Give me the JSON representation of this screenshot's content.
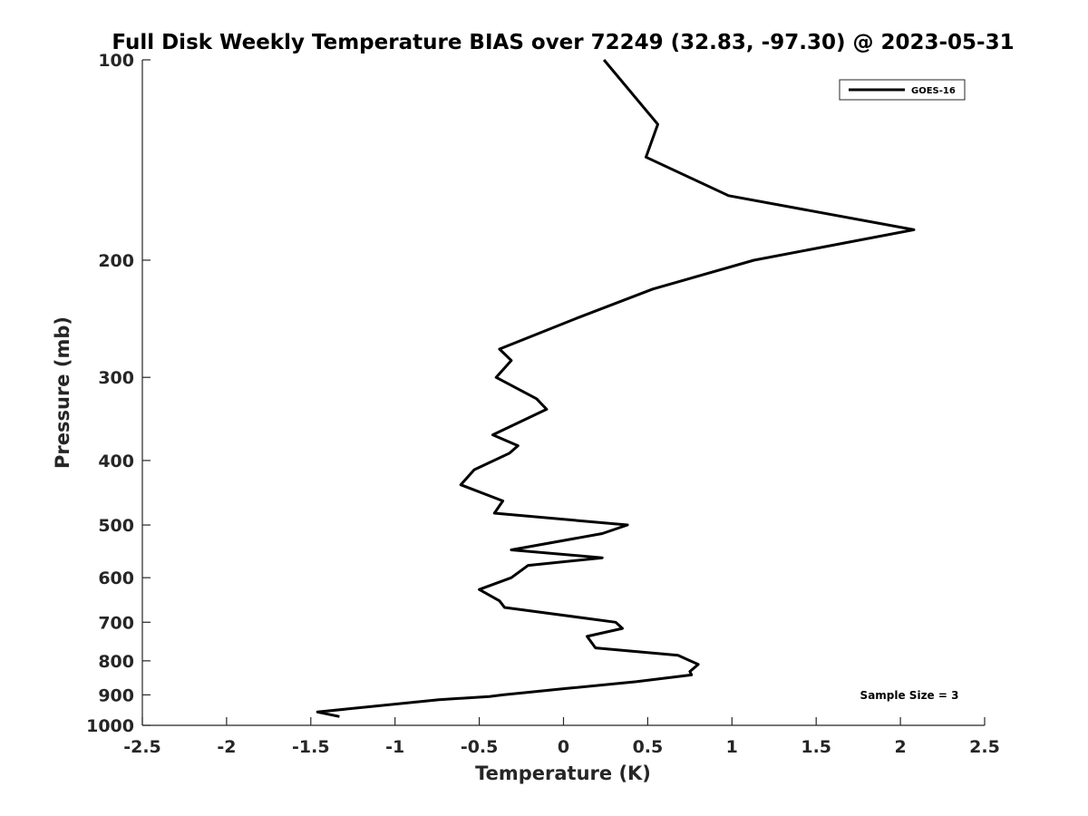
{
  "chart_data": {
    "type": "line",
    "title": "Full Disk Weekly Temperature BIAS over 72249 (32.83, -97.30) @ 2023-05-31",
    "xlabel": "Temperature (K)",
    "ylabel": "Pressure (mb)",
    "xlim": [
      -2.5,
      2.5
    ],
    "ylim": [
      100,
      1000
    ],
    "y_scale": "log",
    "y_reversed": true,
    "x_ticks": [
      -2.5,
      -2,
      -1.5,
      -1,
      -0.5,
      0,
      0.5,
      1,
      1.5,
      2,
      2.5
    ],
    "x_tick_labels": [
      "-2.5",
      "-2",
      "-1.5",
      "-1",
      "-0.5",
      "0",
      "0.5",
      "1",
      "1.5",
      "2",
      "2.5"
    ],
    "y_ticks": [
      100,
      200,
      300,
      400,
      500,
      600,
      700,
      800,
      900,
      1000
    ],
    "y_tick_labels": [
      "100",
      "200",
      "300",
      "400",
      "500",
      "600",
      "700",
      "800",
      "900",
      "1000"
    ],
    "grid": false,
    "legend_position": "top-right",
    "series": [
      {
        "name": "GOES-16",
        "color": "#000000",
        "x": [
          0.24,
          0.56,
          0.49,
          0.98,
          2.08,
          1.13,
          0.53,
          0.07,
          -0.38,
          -0.31,
          -0.4,
          -0.16,
          -0.1,
          -0.42,
          -0.27,
          -0.32,
          -0.53,
          -0.61,
          -0.36,
          -0.41,
          0.38,
          0.23,
          -0.31,
          0.23,
          -0.21,
          -0.31,
          -0.5,
          -0.38,
          -0.35,
          0.31,
          0.35,
          0.14,
          0.19,
          0.68,
          0.8,
          0.75,
          0.76,
          0.43,
          0.02,
          -0.36,
          -0.44,
          -0.74,
          -1.46,
          -1.33
        ],
        "y": [
          100,
          125,
          140,
          160,
          180,
          200,
          221,
          245,
          272,
          283,
          300,
          323,
          335,
          366,
          380,
          390,
          413,
          435,
          460,
          480,
          500,
          515,
          545,
          560,
          575,
          600,
          625,
          650,
          665,
          700,
          715,
          735,
          765,
          785,
          810,
          830,
          840,
          860,
          880,
          900,
          905,
          915,
          955,
          970
        ]
      }
    ],
    "annotation": "Sample Size = 3"
  }
}
